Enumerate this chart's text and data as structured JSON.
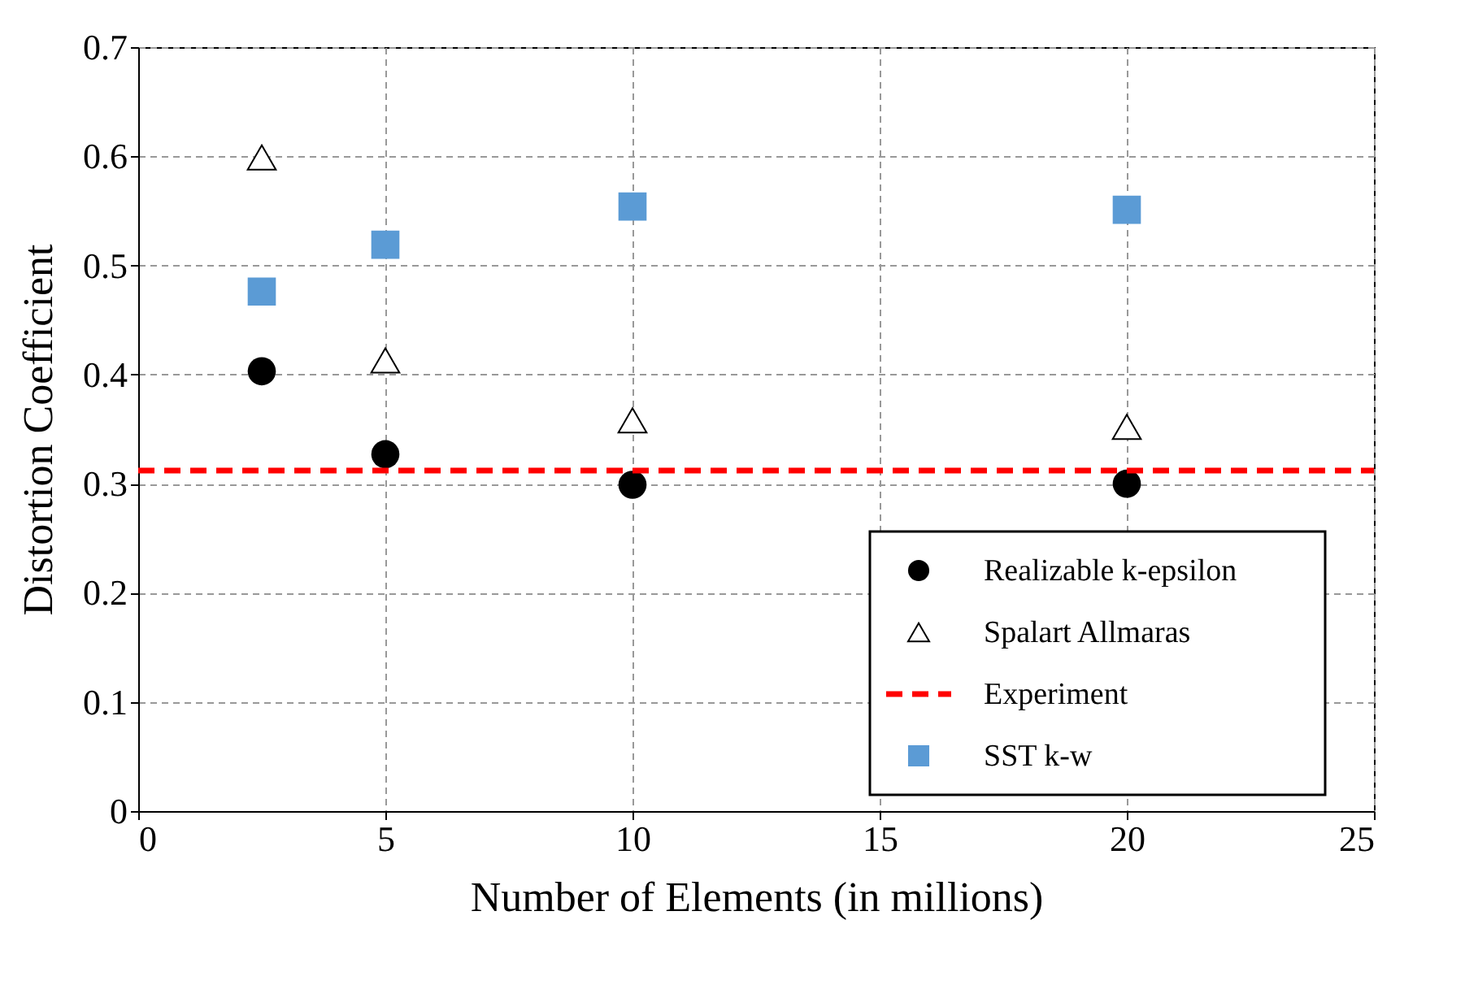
{
  "chart_data": {
    "type": "scatter",
    "xlabel": "Number of Elements (in millions)",
    "ylabel": "Distortion Coefficient",
    "x": [
      2.5,
      5,
      10,
      20
    ],
    "series": [
      {
        "name": "Realizable k-epsilon",
        "color": "#000000",
        "marker": "circle",
        "values": [
          0.403,
          0.327,
          0.299,
          0.3
        ]
      },
      {
        "name": "Spalart Allmaras",
        "color": "#000000",
        "marker": "triangle",
        "values": [
          0.599,
          0.413,
          0.358,
          0.352
        ]
      },
      {
        "name": "Experiment",
        "type": "line",
        "color": "#ff0000",
        "line_style": "dashed",
        "x": [
          0,
          25
        ],
        "values": [
          0.312,
          0.312
        ]
      },
      {
        "name": "SST k-w",
        "color": "#5b9bd5",
        "marker": "square",
        "values": [
          0.476,
          0.519,
          0.554,
          0.551
        ]
      }
    ],
    "xlim": [
      0,
      25
    ],
    "xticks": [
      0,
      5,
      10,
      15,
      20,
      25
    ],
    "ylim": [
      0,
      0.7
    ],
    "yticks": [
      0,
      0.1,
      0.2,
      0.3,
      0.4,
      0.5,
      0.6,
      0.7
    ],
    "grid": true,
    "legend": "bottom right"
  }
}
